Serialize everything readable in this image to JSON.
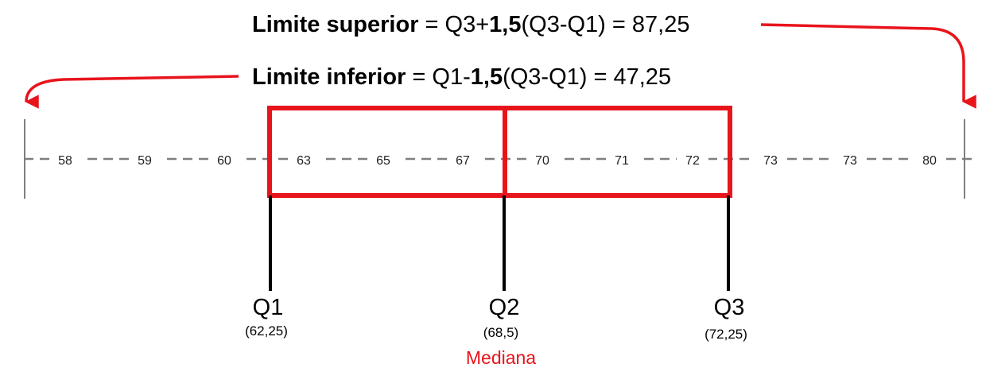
{
  "formulas": {
    "upper": {
      "label": "Limite superior",
      "equals": " = Q3+",
      "factor": "1,5",
      "expr": "(Q3-Q1)",
      "result": " = 87,25"
    },
    "lower": {
      "label": "Limite inferior",
      "equals": " = Q1-",
      "factor": "1,5",
      "expr": "(Q3-Q1)",
      "result": " = 47,25"
    }
  },
  "data_values": [
    "58",
    "59",
    "60",
    "63",
    "65",
    "67",
    "70",
    "71",
    "72",
    "73",
    "73",
    "80"
  ],
  "quartiles": [
    {
      "name": "Q1",
      "value": "(62,25)"
    },
    {
      "name": "Q2",
      "value": "(68,5)"
    },
    {
      "name": "Q3",
      "value": "(72,25)"
    }
  ],
  "median_label": "Mediana",
  "colors": {
    "accent": "#e8141c",
    "arrow": "#e8141c",
    "axis": "#7f7f7f",
    "text": "#000000",
    "median_text": "#e8141c"
  }
}
